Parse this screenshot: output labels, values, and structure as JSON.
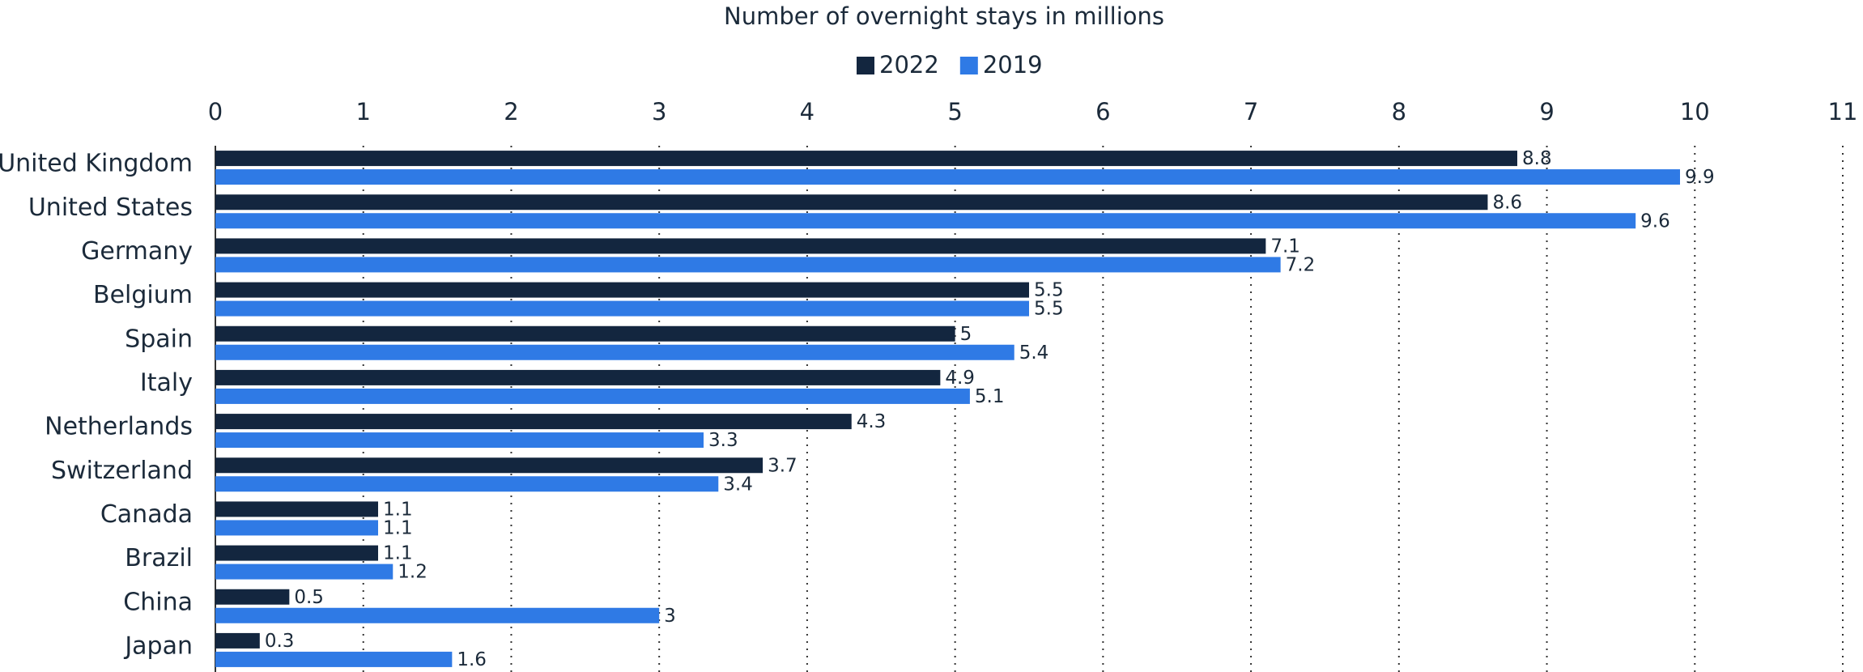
{
  "chart_data": {
    "type": "hbar",
    "title": "Number of overnight stays in millions",
    "categories": [
      "United Kingdom",
      "United States",
      "Germany",
      "Belgium",
      "Spain",
      "Italy",
      "Netherlands",
      "Switzerland",
      "Canada",
      "Brazil",
      "China",
      "Japan"
    ],
    "series": [
      {
        "name": "2022",
        "color": "#13263f",
        "values": [
          8.8,
          8.6,
          7.1,
          5.5,
          5,
          4.9,
          4.3,
          3.7,
          1.1,
          1.1,
          0.5,
          0.3
        ]
      },
      {
        "name": "2019",
        "color": "#2f7ae5",
        "values": [
          9.9,
          9.6,
          7.2,
          5.5,
          5.4,
          5.1,
          3.3,
          3.4,
          1.1,
          1.2,
          3,
          1.6
        ]
      }
    ],
    "xlim": [
      0,
      11
    ],
    "xticks": [
      0,
      1,
      2,
      3,
      4,
      5,
      6,
      7,
      8,
      9,
      10,
      11
    ],
    "grid": true,
    "legend": "top"
  }
}
